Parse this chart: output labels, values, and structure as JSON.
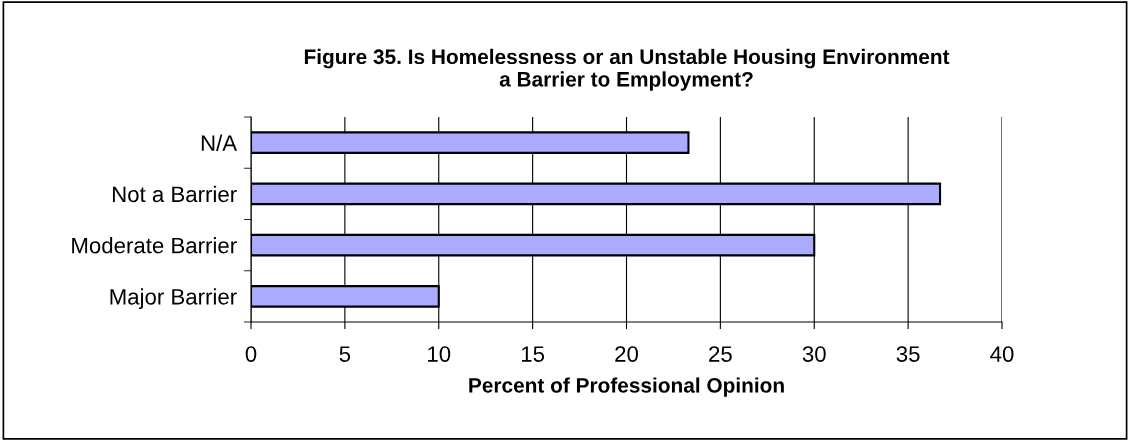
{
  "chart_data": {
    "type": "bar",
    "orientation": "horizontal",
    "title": "Figure 35. Is Homelessness or an Unstable Housing Environment\na Barrier to Employment?",
    "xlabel": "Percent of Professional Opinion",
    "categories": [
      "N/A",
      "Not a Barrier",
      "Moderate Barrier",
      "Major Barrier"
    ],
    "values": [
      23.3,
      36.7,
      30,
      10
    ],
    "color": "#aaaaff",
    "xlim": [
      0,
      40
    ],
    "xticks": [
      0,
      5,
      10,
      15,
      20,
      25,
      30,
      35,
      40
    ],
    "grid": "x",
    "legend": false
  }
}
